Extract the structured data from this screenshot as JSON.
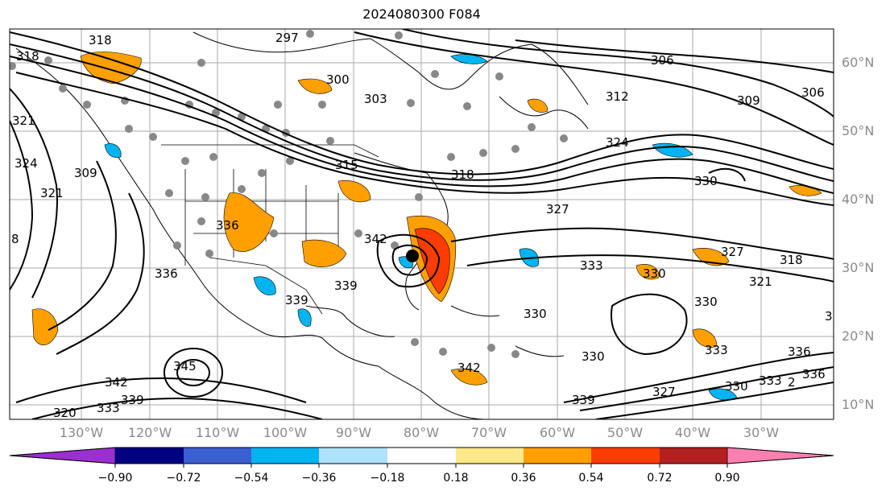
{
  "title": "2024080300 F084",
  "map": {
    "lat_labels": [
      "60°N",
      "50°N",
      "40°N",
      "30°N",
      "20°N",
      "10°N"
    ],
    "lon_labels": [
      "130°W",
      "120°W",
      "110°W",
      "100°W",
      "90°W",
      "80°W",
      "70°W",
      "60°W",
      "50°W",
      "40°W",
      "30°W"
    ],
    "contour_labels": [
      "318",
      "318",
      "297",
      "300",
      "303",
      "306",
      "306",
      "309",
      "312",
      "315",
      "318",
      "324",
      "327",
      "330",
      "333",
      "336",
      "339",
      "342",
      "345",
      "321",
      "324",
      "309",
      "321",
      "327",
      "318",
      "321",
      "330",
      "330",
      "333",
      "336",
      "327",
      "333",
      "339",
      "342",
      "330",
      "339",
      "330",
      "342",
      "339",
      "333",
      "336",
      "330",
      "336",
      "8",
      "3",
      "2",
      "320"
    ]
  },
  "colorbar": {
    "ticks": [
      "−0.90",
      "−0.72",
      "−0.54",
      "−0.36",
      "−0.18",
      "0.18",
      "0.36",
      "0.54",
      "0.72",
      "0.90"
    ],
    "colors": [
      "#9b30d0",
      "#000080",
      "#3a5fd0",
      "#00b4f0",
      "#aee0fa",
      "#ffffff",
      "#ffe88a",
      "#ffa000",
      "#ff3c00",
      "#b22020",
      "#ff80b0"
    ]
  },
  "colors": {
    "label_gray": "#8a8a8a"
  }
}
